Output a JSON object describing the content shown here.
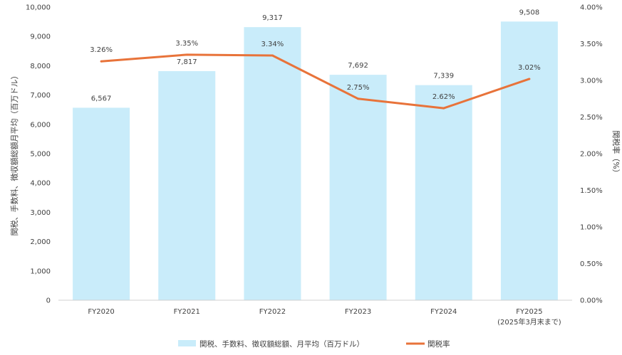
{
  "chart_data": {
    "type": "bar+line",
    "categories": [
      "FY2020",
      "FY2021",
      "FY2022",
      "FY2023",
      "FY2024",
      "FY2025"
    ],
    "category_sublabels": [
      "",
      "",
      "",
      "",
      "",
      "(2025年3月末まで)"
    ],
    "series": [
      {
        "name": "関税、手数料、徴収額総額、月平均（百万ドル）",
        "type": "bar",
        "axis": "left",
        "values": [
          6567,
          7817,
          9317,
          7692,
          7339,
          9508
        ],
        "labels": [
          "6,567",
          "7,817",
          "9,317",
          "7,692",
          "7,339",
          "9,508"
        ],
        "color": "#c9ecfa"
      },
      {
        "name": "関税率",
        "type": "line",
        "axis": "right",
        "values": [
          3.26,
          3.35,
          3.34,
          2.75,
          2.62,
          3.02
        ],
        "labels": [
          "3.26%",
          "3.35%",
          "3.34%",
          "2.75%",
          "2.62%",
          "3.02%"
        ],
        "color": "#e8733a"
      }
    ],
    "y_left": {
      "label": "関税、手数料、徴収額総額月平均（百万ドル）",
      "lim": [
        0,
        10000
      ],
      "ticks": [
        "0",
        "1,000",
        "2,000",
        "3,000",
        "4,000",
        "5,000",
        "6,000",
        "7,000",
        "8,000",
        "9,000",
        "10,000"
      ]
    },
    "y_right": {
      "label": "関税率（%）",
      "lim": [
        0,
        4
      ],
      "ticks": [
        "0.00%",
        "0.50%",
        "1.00%",
        "1.50%",
        "2.00%",
        "2.50%",
        "3.00%",
        "3.50%",
        "4.00%"
      ]
    },
    "grid": false,
    "legend_position": "bottom"
  }
}
